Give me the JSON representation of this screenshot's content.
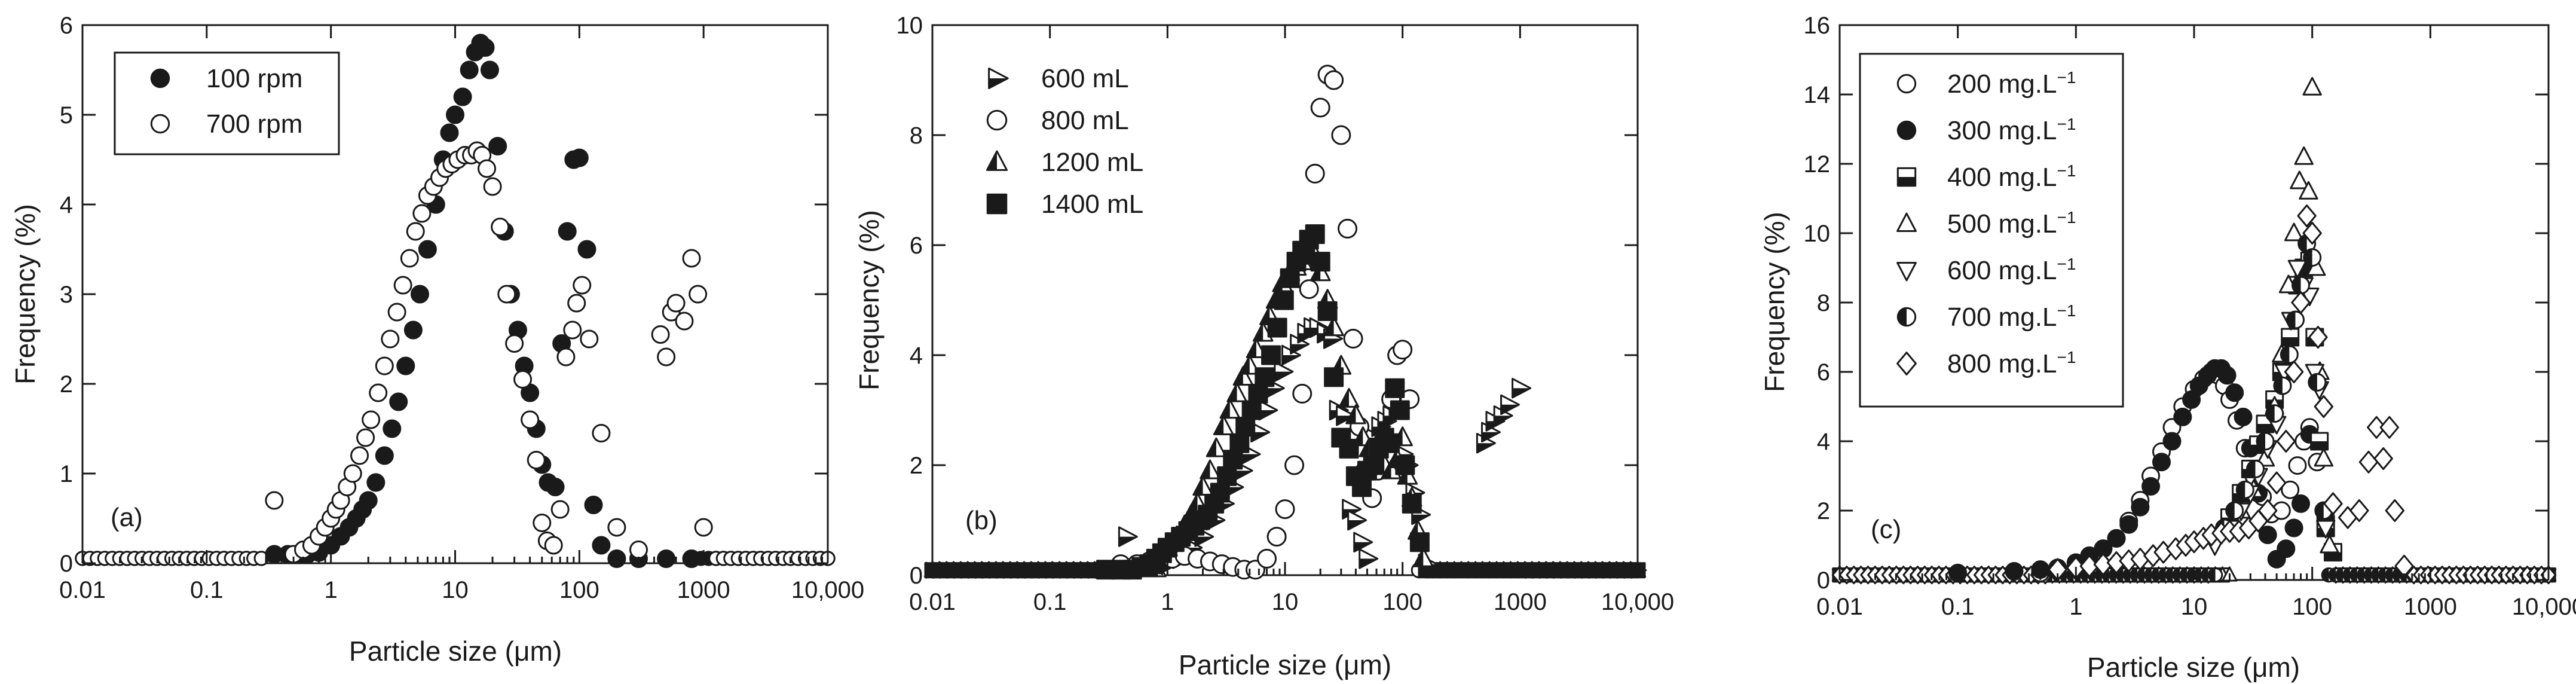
{
  "chart_data": [
    {
      "type": "scatter",
      "panel_label": "(a)",
      "xlabel": "Particle size (μm)",
      "ylabel": "Frequency (%)",
      "xscale": "log",
      "xlim": [
        0.01,
        10000
      ],
      "ylim": [
        0,
        6
      ],
      "x_ticks": [
        "0.01",
        "0.1",
        "1",
        "10",
        "100",
        "1000",
        "10,000"
      ],
      "y_ticks": [
        "0",
        "1",
        "2",
        "3",
        "4",
        "5",
        "6"
      ],
      "legend_position": "top-left",
      "series": [
        {
          "name": "100 rpm",
          "marker": "circle",
          "fill": "solid",
          "x": [
            0.35,
            0.45,
            0.55,
            0.65,
            0.8,
            1.0,
            1.2,
            1.4,
            1.6,
            1.8,
            2.0,
            2.3,
            2.7,
            3.1,
            3.5,
            4.0,
            4.6,
            5.2,
            6.0,
            7.0,
            8.0,
            9.0,
            10.0,
            11.5,
            13.0,
            14.5,
            16.0,
            17.5,
            19.0,
            22.0,
            25.0,
            28.0,
            32.0,
            36.0,
            40.0,
            45.0,
            50.0,
            56.0,
            64.0,
            72.0,
            80.0,
            90.0,
            100.0,
            115.0,
            130.0,
            150.0,
            200.0,
            300.0,
            500.0,
            800.0
          ],
          "values": [
            0.1,
            0.1,
            0.1,
            0.1,
            0.12,
            0.2,
            0.3,
            0.4,
            0.5,
            0.6,
            0.7,
            0.9,
            1.2,
            1.5,
            1.8,
            2.2,
            2.6,
            3.0,
            3.5,
            4.0,
            4.5,
            4.8,
            5.0,
            5.2,
            5.5,
            5.7,
            5.8,
            5.75,
            5.5,
            4.65,
            3.7,
            3.0,
            2.6,
            2.2,
            1.9,
            1.5,
            1.1,
            0.9,
            0.85,
            2.45,
            3.7,
            4.5,
            4.52,
            3.5,
            0.65,
            0.2,
            0.05,
            0.05,
            0.05,
            0.05
          ]
        },
        {
          "name": "700 rpm",
          "marker": "circle",
          "fill": "hollow",
          "x": [
            0.35,
            0.5,
            0.6,
            0.7,
            0.8,
            0.9,
            1.0,
            1.1,
            1.2,
            1.35,
            1.5,
            1.7,
            1.9,
            2.1,
            2.4,
            2.7,
            3.0,
            3.4,
            3.8,
            4.3,
            4.8,
            5.4,
            6.0,
            6.7,
            7.5,
            8.4,
            9.4,
            10.5,
            12.0,
            13.5,
            15.0,
            16.5,
            18.0,
            20.0,
            23.0,
            26.0,
            30.0,
            35.0,
            40.0,
            45.0,
            50.0,
            55.0,
            62.0,
            70.0,
            78.0,
            88.0,
            95.0,
            105.0,
            120.0,
            150.0,
            200.0,
            300.0,
            450.0,
            500.0,
            550.0,
            600.0,
            700.0,
            800.0,
            900.0,
            1000.0
          ],
          "values": [
            0.7,
            0.1,
            0.15,
            0.2,
            0.3,
            0.4,
            0.5,
            0.6,
            0.7,
            0.85,
            1.0,
            1.2,
            1.4,
            1.6,
            1.9,
            2.2,
            2.5,
            2.8,
            3.1,
            3.4,
            3.7,
            3.9,
            4.1,
            4.2,
            4.3,
            4.4,
            4.45,
            4.5,
            4.55,
            4.55,
            4.6,
            4.55,
            4.4,
            4.2,
            3.75,
            3.0,
            2.45,
            2.05,
            1.6,
            1.15,
            0.45,
            0.25,
            0.2,
            0.6,
            2.3,
            2.6,
            2.9,
            3.1,
            2.5,
            1.45,
            0.4,
            0.15,
            2.55,
            2.3,
            2.8,
            2.9,
            2.7,
            3.4,
            3.0,
            0.4
          ]
        }
      ]
    },
    {
      "type": "scatter",
      "panel_label": "(b)",
      "xlabel": "Particle size (μm)",
      "ylabel": "Frequency (%)",
      "xscale": "log",
      "xlim": [
        0.01,
        10000
      ],
      "ylim": [
        0,
        10
      ],
      "x_ticks": [
        "0.01",
        "0.1",
        "1",
        "10",
        "100",
        "1000",
        "10,000"
      ],
      "y_ticks": [
        "0",
        "2",
        "4",
        "6",
        "8",
        "10"
      ],
      "legend_position": "top-left",
      "series": [
        {
          "name": "600 mL",
          "marker": "triangle-right",
          "fill": "half",
          "x": [
            0.45,
            1.0,
            1.3,
            1.6,
            2.0,
            2.5,
            3.0,
            3.6,
            4.3,
            5.0,
            6.0,
            7.0,
            8.0,
            9.5,
            11.0,
            13.0,
            15.0,
            17.0,
            19.0,
            22.0,
            25.0,
            28.0,
            32.0,
            36.0,
            40.0,
            45.0,
            50.0,
            56.0,
            64.0,
            72.0,
            80.0,
            90.0,
            100.0,
            110.0,
            125.0,
            140.0,
            160.0,
            500.0,
            550.0,
            600.0,
            700.0,
            800.0,
            1000.0
          ],
          "values": [
            0.7,
            0.2,
            0.3,
            0.5,
            0.7,
            1.0,
            1.3,
            1.6,
            1.9,
            2.2,
            2.6,
            3.0,
            3.4,
            3.7,
            4.0,
            4.2,
            4.4,
            4.5,
            4.5,
            4.4,
            4.3,
            3.0,
            2.9,
            1.2,
            1.0,
            0.6,
            0.3,
            2.5,
            2.7,
            2.8,
            2.9,
            3.0,
            2.2,
            2.0,
            1.5,
            1.1,
            0.2,
            2.4,
            2.6,
            2.8,
            2.9,
            3.1,
            3.4
          ]
        },
        {
          "name": "800 mL",
          "marker": "circle",
          "fill": "hollow",
          "x": [
            0.4,
            0.55,
            0.7,
            0.9,
            1.1,
            1.4,
            1.8,
            2.3,
            2.9,
            3.6,
            4.5,
            5.6,
            7.0,
            8.5,
            10.0,
            12.0,
            14.0,
            16.0,
            18.0,
            20.0,
            23.0,
            26.0,
            30.0,
            34.0,
            38.0,
            43.0,
            48.0,
            55.0,
            62.0,
            70.0,
            80.0,
            90.0,
            100.0,
            115.0
          ],
          "values": [
            0.2,
            0.2,
            0.25,
            0.3,
            0.3,
            0.35,
            0.3,
            0.25,
            0.2,
            0.15,
            0.1,
            0.1,
            0.3,
            0.7,
            1.2,
            2.0,
            3.3,
            5.2,
            7.3,
            8.5,
            9.1,
            9.0,
            8.0,
            6.3,
            4.3,
            2.7,
            1.9,
            1.4,
            1.9,
            2.5,
            3.2,
            4.0,
            4.1,
            3.2
          ]
        },
        {
          "name": "1200 mL",
          "marker": "triangle-up",
          "fill": "half",
          "x": [
            1.0,
            1.2,
            1.4,
            1.6,
            1.8,
            2.0,
            2.3,
            2.6,
            3.0,
            3.4,
            3.9,
            4.4,
            5.0,
            5.7,
            6.5,
            7.4,
            8.4,
            9.5,
            11.0,
            12.5,
            14.0,
            16.0,
            18.0,
            20.0,
            23.0,
            26.0,
            30.0,
            35.0,
            40.0,
            46.0,
            52.0,
            60.0,
            70.0,
            80.0,
            90.0,
            100.0,
            110.0,
            120.0,
            135.0,
            150.0
          ],
          "values": [
            0.5,
            0.7,
            0.9,
            1.1,
            1.3,
            1.6,
            1.9,
            2.3,
            2.7,
            3.0,
            3.3,
            3.6,
            3.8,
            4.1,
            4.4,
            4.7,
            5.0,
            5.3,
            5.5,
            5.6,
            5.7,
            5.8,
            5.8,
            5.5,
            5.0,
            4.5,
            3.8,
            3.2,
            2.9,
            2.5,
            2.3,
            2.2,
            2.0,
            1.9,
            2.1,
            2.5,
            1.8,
            1.4,
            0.8,
            0.3
          ]
        },
        {
          "name": "1400 mL",
          "marker": "square",
          "fill": "solid",
          "x": [
            0.3,
            0.4,
            0.5,
            0.6,
            0.7,
            0.8,
            0.9,
            1.0,
            1.15,
            1.3,
            1.5,
            1.7,
            1.9,
            2.2,
            2.5,
            2.8,
            3.2,
            3.6,
            4.1,
            4.6,
            5.2,
            5.9,
            6.7,
            7.6,
            8.6,
            9.8,
            11.0,
            12.5,
            14.0,
            16.0,
            18.0,
            20.0,
            23.0,
            26.0,
            30.0,
            35.0,
            40.0,
            45.0,
            50.0,
            56.0,
            63.0,
            70.0,
            78.0,
            86.0,
            95.0,
            105.0,
            120.0,
            140.0
          ],
          "values": [
            0.1,
            0.1,
            0.1,
            0.15,
            0.2,
            0.3,
            0.4,
            0.5,
            0.6,
            0.7,
            0.8,
            0.9,
            1.0,
            1.1,
            1.3,
            1.5,
            1.8,
            2.1,
            2.4,
            2.7,
            3.0,
            3.3,
            3.6,
            4.0,
            4.5,
            5.0,
            5.4,
            5.7,
            5.9,
            6.1,
            6.2,
            5.7,
            4.8,
            3.6,
            2.5,
            2.3,
            1.8,
            1.6,
            1.9,
            2.0,
            2.3,
            2.5,
            2.4,
            3.4,
            3.0,
            2.0,
            1.3,
            0.6
          ]
        }
      ]
    },
    {
      "type": "scatter",
      "panel_label": "(c)",
      "xlabel": "Particle size (μm)",
      "ylabel": "Frequency (%)",
      "xscale": "log",
      "xlim": [
        0.01,
        10000
      ],
      "ylim": [
        0,
        16
      ],
      "x_ticks": [
        "0.01",
        "0.1",
        "1",
        "10",
        "100",
        "1000",
        "10,000"
      ],
      "y_ticks": [
        "0",
        "2",
        "4",
        "6",
        "8",
        "10",
        "12",
        "14",
        "16"
      ],
      "legend_position": "top-left",
      "series": [
        {
          "name": "200 mg.L",
          "name_superscript": "−1",
          "marker": "circle",
          "fill": "hollow",
          "x": [
            0.5,
            0.7,
            1.0,
            1.3,
            1.7,
            2.2,
            2.8,
            3.5,
            4.3,
            5.3,
            6.5,
            8.0,
            10.0,
            12.0,
            14.0,
            16.0,
            18.0,
            20.0,
            23.0,
            27.0,
            32.0,
            38.0,
            45.0,
            55.0,
            65.0,
            75.0,
            85.0,
            95.0,
            110.0,
            130.0
          ],
          "values": [
            0.2,
            0.3,
            0.4,
            0.6,
            0.9,
            1.2,
            1.7,
            2.3,
            3.0,
            3.7,
            4.4,
            5.0,
            5.5,
            5.8,
            6.0,
            5.9,
            5.6,
            5.2,
            4.6,
            3.8,
            3.0,
            2.4,
            1.9,
            2.0,
            2.6,
            3.3,
            4.0,
            4.4,
            3.4,
            1.8
          ]
        },
        {
          "name": "300 mg.L",
          "name_superscript": "−1",
          "marker": "circle",
          "fill": "solid",
          "x": [
            0.1,
            0.3,
            0.5,
            0.7,
            1.0,
            1.3,
            1.7,
            2.2,
            2.8,
            3.5,
            4.3,
            5.3,
            6.5,
            8.0,
            9.5,
            11.0,
            13.0,
            15.0,
            17.0,
            19.0,
            22.0,
            26.0,
            30.0,
            35.0,
            42.0,
            50.0,
            60.0,
            70.0,
            80.0,
            95.0,
            110.0,
            130.0
          ],
          "values": [
            0.2,
            0.25,
            0.3,
            0.35,
            0.5,
            0.7,
            0.9,
            1.2,
            1.6,
            2.1,
            2.7,
            3.4,
            4.0,
            4.7,
            5.2,
            5.6,
            5.9,
            6.1,
            6.1,
            5.9,
            5.4,
            4.7,
            3.8,
            2.5,
            1.3,
            0.6,
            0.9,
            1.5,
            2.2,
            4.2,
            5.7,
            1.8
          ]
        },
        {
          "name": "400 mg.L",
          "name_superscript": "−1",
          "marker": "square",
          "fill": "half",
          "x": [
            20.0,
            25.0,
            30.0,
            35.0,
            40.0,
            48.0,
            55.0,
            65.0,
            75.0,
            85.0,
            95.0,
            105.0,
            115.0,
            130.0,
            150.0
          ],
          "values": [
            1.8,
            2.5,
            3.2,
            3.9,
            4.5,
            5.2,
            6.0,
            7.0,
            8.5,
            9.0,
            9.2,
            7.0,
            4.0,
            1.5,
            0.8
          ]
        },
        {
          "name": "500 mg.L",
          "name_superscript": "−1",
          "marker": "triangle-up",
          "fill": "hollow",
          "x": [
            25.0,
            32.0,
            40.0,
            48.0,
            55.0,
            63.0,
            70.0,
            78.0,
            85.0,
            93.0,
            100.0,
            108.0,
            116.0,
            125.0,
            140.0
          ],
          "values": [
            2.0,
            2.6,
            3.5,
            5.0,
            6.5,
            8.5,
            10.0,
            11.5,
            12.2,
            11.2,
            14.2,
            9.0,
            6.0,
            3.5,
            1.0
          ]
        },
        {
          "name": "600 mg.L",
          "name_superscript": "−1",
          "marker": "triangle-down",
          "fill": "hollow",
          "x": [
            15.0,
            20.0,
            25.0,
            30.0,
            35.0,
            42.0,
            50.0,
            58.0,
            66.0,
            75.0,
            85.0,
            95.0,
            105.0,
            115.0,
            130.0
          ],
          "values": [
            1.0,
            1.5,
            2.0,
            2.5,
            3.0,
            3.8,
            4.5,
            6.0,
            7.5,
            9.0,
            8.5,
            8.2,
            6.0,
            5.5,
            1.5
          ]
        },
        {
          "name": "700 mg.L",
          "name_superscript": "−1",
          "marker": "circle",
          "fill": "half",
          "x": [
            18.0,
            22.0,
            27.0,
            33.0,
            40.0,
            48.0,
            56.0,
            64.0,
            72.0,
            80.0,
            90.0,
            100.0,
            110.0,
            125.0
          ],
          "values": [
            1.5,
            2.0,
            2.6,
            3.2,
            4.0,
            4.8,
            5.6,
            6.5,
            7.5,
            8.5,
            9.7,
            9.3,
            5.7,
            2.0
          ]
        },
        {
          "name": "800 mg.L",
          "name_superscript": "−1",
          "marker": "diamond",
          "fill": "hollow",
          "x": [
            0.7,
            1.0,
            1.3,
            1.7,
            2.2,
            2.8,
            3.5,
            4.5,
            5.5,
            7.0,
            8.5,
            10.0,
            12.0,
            14.0,
            17.0,
            20.0,
            24.0,
            29.0,
            35.0,
            42.0,
            50.0,
            60.0,
            70.0,
            80.0,
            90.0,
            100.0,
            112.0,
            125.0,
            150.0,
            200.0,
            250.0,
            300.0,
            350.0,
            400.0,
            450.0,
            500.0,
            600.0
          ],
          "values": [
            0.3,
            0.35,
            0.4,
            0.45,
            0.5,
            0.55,
            0.6,
            0.7,
            0.8,
            0.9,
            1.0,
            1.1,
            1.2,
            1.3,
            1.35,
            1.4,
            1.4,
            1.5,
            1.7,
            2.0,
            2.8,
            4.0,
            6.0,
            8.0,
            10.5,
            10.0,
            7.0,
            5.0,
            2.2,
            1.8,
            2.0,
            3.4,
            4.4,
            3.5,
            4.4,
            2.0,
            0.4
          ]
        }
      ]
    }
  ]
}
